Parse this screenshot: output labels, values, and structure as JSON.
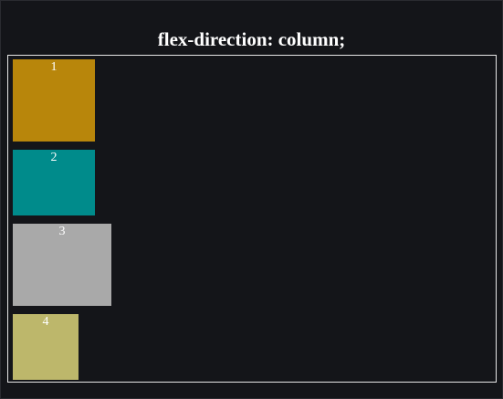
{
  "header": {
    "title": "flex-direction: column;"
  },
  "flex_container": {
    "border_color": "#e7e7e7",
    "items": [
      {
        "label": "1",
        "color": "#b8860b"
      },
      {
        "label": "2",
        "color": "#008b8b"
      },
      {
        "label": "3",
        "color": "#a9a9a9"
      },
      {
        "label": "4",
        "color": "#bdb76b"
      }
    ]
  },
  "colors": {
    "background": "#141519",
    "text": "#ffffff"
  }
}
